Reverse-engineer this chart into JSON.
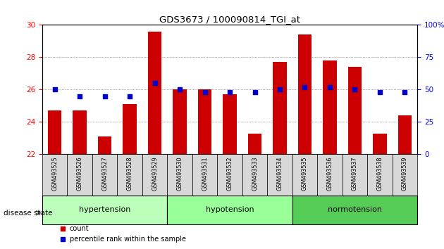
{
  "title": "GDS3673 / 100090814_TGI_at",
  "samples": [
    "GSM493525",
    "GSM493526",
    "GSM493527",
    "GSM493528",
    "GSM493529",
    "GSM493530",
    "GSM493531",
    "GSM493532",
    "GSM493533",
    "GSM493534",
    "GSM493535",
    "GSM493536",
    "GSM493537",
    "GSM493538",
    "GSM493539"
  ],
  "counts": [
    24.7,
    24.7,
    23.1,
    25.1,
    29.6,
    26.0,
    26.0,
    25.7,
    23.3,
    27.7,
    29.4,
    27.8,
    27.4,
    23.3,
    24.4
  ],
  "percentiles": [
    50,
    45,
    45,
    45,
    55,
    50,
    48,
    48,
    48,
    50,
    52,
    52,
    50,
    48,
    48
  ],
  "groups": [
    {
      "label": "hypertension",
      "start": 0,
      "end": 4,
      "color": "#bbffbb"
    },
    {
      "label": "hypotension",
      "start": 5,
      "end": 9,
      "color": "#99ff99"
    },
    {
      "label": "normotension",
      "start": 10,
      "end": 14,
      "color": "#55cc55"
    }
  ],
  "ylim_left": [
    22,
    30
  ],
  "ylim_right": [
    0,
    100
  ],
  "yticks_left": [
    22,
    24,
    26,
    28,
    30
  ],
  "yticks_right": [
    0,
    25,
    50,
    75,
    100
  ],
  "bar_color": "#cc0000",
  "dot_color": "#0000cc",
  "bar_width": 0.55,
  "grid_color": "#555555",
  "label_count": "count",
  "label_percentile": "percentile rank within the sample",
  "disease_state_label": "disease state"
}
